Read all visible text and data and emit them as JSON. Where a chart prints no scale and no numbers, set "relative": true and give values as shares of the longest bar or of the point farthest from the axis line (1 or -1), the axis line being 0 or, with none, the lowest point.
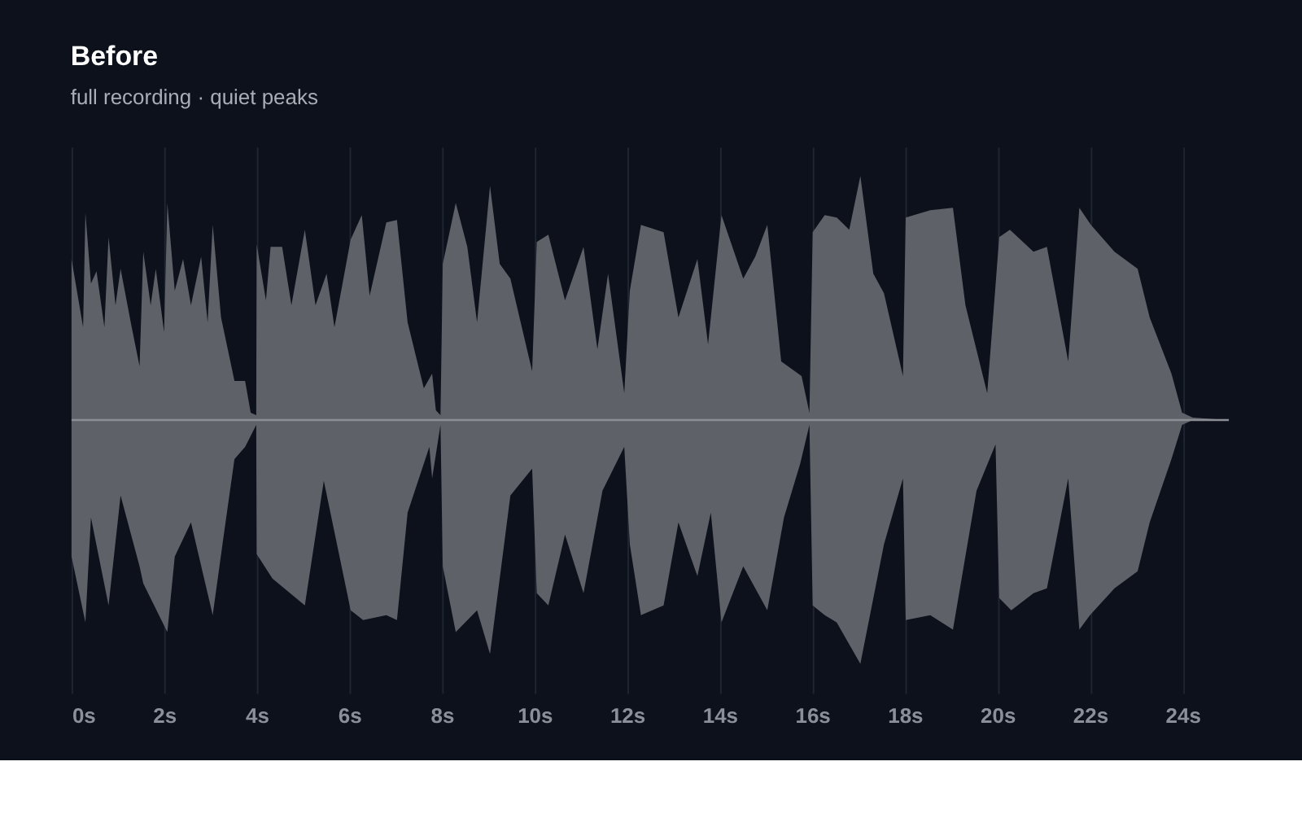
{
  "chart_data": {
    "type": "area",
    "title": "Before",
    "subtitle": "full recording · quiet peaks",
    "relative": true,
    "xlim": [
      0,
      25
    ],
    "xticks": [
      {
        "value": 0,
        "label": "0s"
      },
      {
        "value": 2,
        "label": "2s"
      },
      {
        "value": 4,
        "label": "4s"
      },
      {
        "value": 6,
        "label": "6s"
      },
      {
        "value": 8,
        "label": "8s"
      },
      {
        "value": 10,
        "label": "10s"
      },
      {
        "value": 12,
        "label": "12s"
      },
      {
        "value": 14,
        "label": "14s"
      },
      {
        "value": 16,
        "label": "16s"
      },
      {
        "value": 18,
        "label": "18s"
      },
      {
        "value": 20,
        "label": "20s"
      },
      {
        "value": 22,
        "label": "22s"
      },
      {
        "value": 24,
        "label": "24s"
      }
    ],
    "grid": "x",
    "ref_lines": [
      {
        "axis": "y",
        "value": 0,
        "color": "#8b8e95"
      }
    ],
    "series": [
      {
        "color": "#5f6168",
        "x": [
          0,
          0.25,
          0.3,
          0.42,
          0.54,
          0.71,
          0.8,
          0.95,
          1.06,
          1.3,
          1.47,
          1.55,
          1.71,
          1.82,
          2.0,
          2.07,
          2.23,
          2.41,
          2.58,
          2.8,
          2.94,
          3.05,
          3.23,
          3.52,
          3.75,
          3.87,
          3.99,
          4.0,
          4.2,
          4.3,
          4.55,
          4.75,
          5.04,
          5.27,
          5.51,
          5.68,
          6.03,
          6.27,
          6.44,
          6.8,
          7.03,
          7.26,
          7.61,
          7.79,
          7.87,
          7.97,
          8.02,
          8.3,
          8.55,
          8.76,
          9.04,
          9.25,
          9.48,
          9.95,
          10.05,
          10.3,
          10.66,
          11.06,
          11.36,
          11.59,
          11.94,
          12.06,
          12.3,
          12.79,
          13.11,
          13.52,
          13.75,
          14.04,
          14.51,
          14.77,
          15.03,
          15.33,
          15.77,
          15.94,
          16.01,
          16.27,
          16.53,
          16.8,
          17.04,
          17.32,
          17.55,
          17.96,
          18.02,
          18.55,
          19.04,
          19.31,
          19.78,
          20.04,
          20.27,
          20.78,
          21.07,
          21.53,
          21.77,
          22.02,
          22.53,
          23.03,
          23.29,
          23.76,
          23.99,
          24.22,
          24.98
        ],
        "values": [
          0.66,
          0.38,
          0.85,
          0.56,
          0.61,
          0.38,
          0.75,
          0.47,
          0.62,
          0.38,
          0.22,
          0.69,
          0.47,
          0.62,
          0.36,
          0.89,
          0.53,
          0.66,
          0.47,
          0.67,
          0.4,
          0.8,
          0.42,
          0.16,
          0.16,
          0.03,
          0.02,
          0.72,
          0.49,
          0.71,
          0.71,
          0.47,
          0.78,
          0.47,
          0.6,
          0.38,
          0.74,
          0.84,
          0.51,
          0.81,
          0.82,
          0.4,
          0.13,
          0.19,
          0.04,
          0.02,
          0.64,
          0.89,
          0.71,
          0.4,
          0.96,
          0.64,
          0.58,
          0.2,
          0.73,
          0.76,
          0.49,
          0.71,
          0.29,
          0.6,
          0.11,
          0.53,
          0.8,
          0.77,
          0.42,
          0.66,
          0.31,
          0.84,
          0.58,
          0.67,
          0.8,
          0.24,
          0.18,
          0.03,
          0.77,
          0.84,
          0.83,
          0.78,
          1.0,
          0.6,
          0.52,
          0.18,
          0.83,
          0.86,
          0.87,
          0.47,
          0.11,
          0.75,
          0.78,
          0.69,
          0.71,
          0.24,
          0.87,
          0.8,
          0.69,
          0.62,
          0.42,
          0.19,
          0.03,
          0.01,
          0
        ]
      },
      {
        "color": "#5f6168",
        "x": [
          0,
          0.3,
          0.42,
          0.8,
          1.06,
          1.47,
          1.55,
          2.07,
          2.23,
          2.58,
          3.05,
          3.29,
          3.52,
          3.75,
          3.99,
          4.0,
          4.34,
          5.04,
          5.45,
          6.03,
          6.3,
          6.8,
          7.03,
          7.26,
          7.73,
          7.79,
          7.97,
          8.02,
          8.3,
          8.76,
          9.04,
          9.48,
          9.95,
          10.05,
          10.3,
          10.66,
          11.06,
          11.47,
          11.94,
          12.06,
          12.3,
          12.79,
          13.11,
          13.52,
          13.81,
          14.04,
          14.51,
          15.03,
          15.39,
          15.74,
          15.94,
          16.01,
          16.27,
          16.53,
          17.04,
          17.55,
          17.96,
          18.02,
          18.55,
          19.04,
          19.55,
          19.96,
          20.04,
          20.3,
          20.78,
          21.07,
          21.53,
          21.77,
          22.0,
          22.53,
          23.03,
          23.29,
          23.76,
          23.99,
          24.22,
          24.98
        ],
        "values": [
          -0.56,
          -0.83,
          -0.4,
          -0.76,
          -0.31,
          -0.6,
          -0.67,
          -0.87,
          -0.56,
          -0.42,
          -0.8,
          -0.47,
          -0.16,
          -0.11,
          -0.02,
          -0.55,
          -0.65,
          -0.76,
          -0.25,
          -0.78,
          -0.82,
          -0.8,
          -0.82,
          -0.38,
          -0.11,
          -0.24,
          -0.02,
          -0.6,
          -0.87,
          -0.78,
          -0.96,
          -0.31,
          -0.2,
          -0.71,
          -0.76,
          -0.47,
          -0.71,
          -0.29,
          -0.11,
          -0.51,
          -0.8,
          -0.76,
          -0.42,
          -0.64,
          -0.38,
          -0.83,
          -0.6,
          -0.78,
          -0.4,
          -0.18,
          -0.02,
          -0.76,
          -0.8,
          -0.83,
          -1.0,
          -0.51,
          -0.24,
          -0.82,
          -0.8,
          -0.86,
          -0.29,
          -0.1,
          -0.73,
          -0.78,
          -0.71,
          -0.69,
          -0.24,
          -0.86,
          -0.8,
          -0.69,
          -0.62,
          -0.42,
          -0.16,
          -0.02,
          0,
          0
        ]
      }
    ]
  }
}
